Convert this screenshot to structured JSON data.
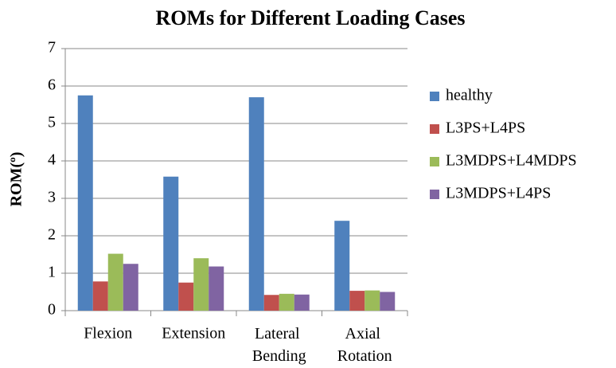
{
  "chart_data": {
    "type": "bar",
    "title": "ROMs for Different Loading Cases",
    "y_label": "ROM(º)",
    "categories": [
      "Flexion",
      "Extension",
      "Lateral Bending",
      "Axial Rotation"
    ],
    "series": [
      {
        "name": "healthy",
        "color": "#4f81bd",
        "values": [
          5.75,
          3.58,
          5.7,
          2.4
        ]
      },
      {
        "name": "L3PS+L4PS",
        "color": "#c0504d",
        "values": [
          0.78,
          0.75,
          0.42,
          0.53
        ]
      },
      {
        "name": "L3MDPS+L4MDPS",
        "color": "#9bbb59",
        "values": [
          1.52,
          1.4,
          0.45,
          0.54
        ]
      },
      {
        "name": "L3MDPS+L4PS",
        "color": "#8064a2",
        "values": [
          1.25,
          1.18,
          0.43,
          0.5
        ]
      }
    ],
    "ylim": [
      0,
      7
    ],
    "yticks": [
      0,
      1,
      2,
      3,
      4,
      5,
      6,
      7
    ],
    "grid": true,
    "legend": "right"
  }
}
